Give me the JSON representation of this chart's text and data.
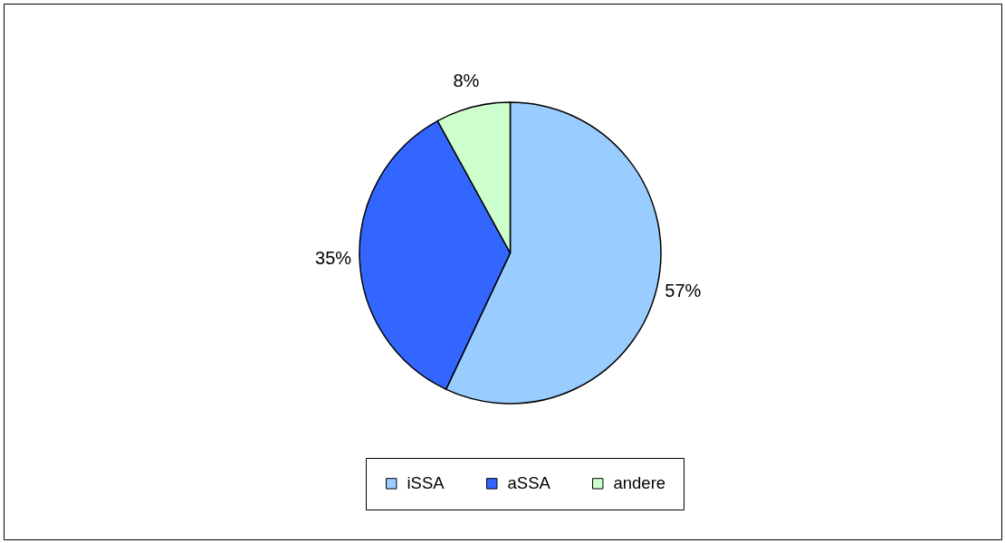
{
  "chart_data": {
    "type": "pie",
    "categories": [
      "iSSA",
      "aSSA",
      "andere"
    ],
    "values": [
      57,
      35,
      8
    ],
    "colors": [
      "#99ccff",
      "#3366ff",
      "#ccffcc"
    ],
    "value_labels": [
      "57%",
      "35%",
      "8%"
    ],
    "legend": "bottom"
  }
}
